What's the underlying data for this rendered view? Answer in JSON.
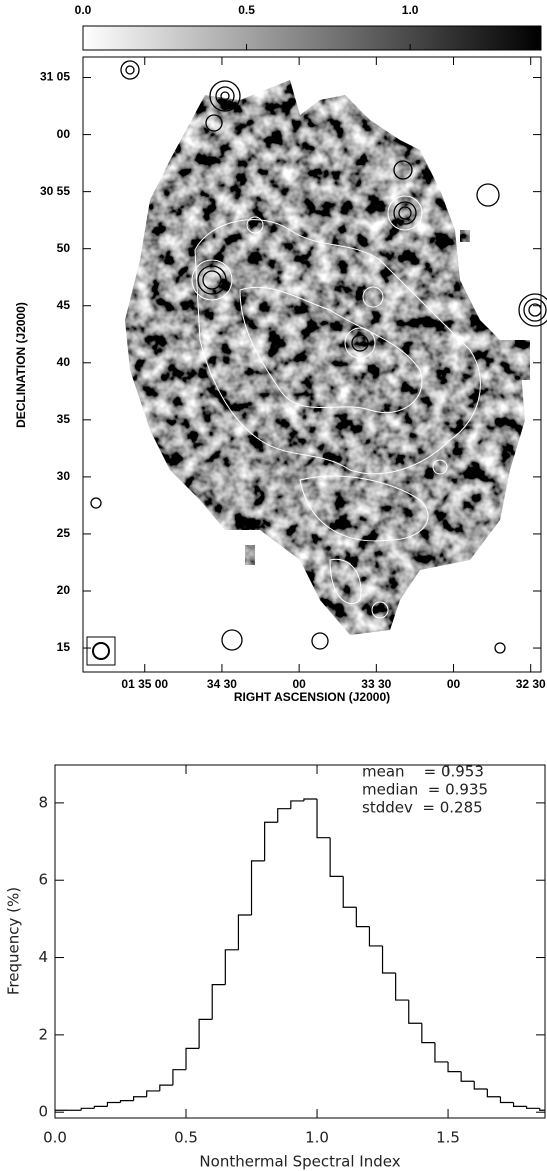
{
  "chart_data": [
    {
      "type": "map",
      "colorbar": {
        "clim": [
          0,
          1.4
        ],
        "ticks": [
          {
            "value": 0,
            "label": "0.0"
          },
          0.5,
          {
            "value": 1,
            "label": "1.0"
          }
        ]
      },
      "xlabel": "RIGHT ASCENSION (J2000)",
      "ylabel": "DECLINATION (J2000)",
      "xlim": [
        2124,
        1946
      ],
      "xticks": [
        {
          "value": 2100,
          "label": "01 35 00"
        },
        {
          "value": 2070,
          "label": "34 30"
        },
        {
          "value": 2040,
          "label": "00"
        },
        {
          "value": 2010,
          "label": "33 30"
        },
        {
          "value": 1980,
          "label": "00"
        },
        {
          "value": 1950,
          "label": "32 30"
        }
      ],
      "ylim": [
        12.9,
        66.8
      ],
      "yticks": [
        {
          "value": 65,
          "label": "31 05"
        },
        {
          "value": 60,
          "label": "00"
        },
        {
          "value": 55,
          "label": "30 55"
        },
        50,
        45,
        40,
        35,
        30,
        25,
        20,
        15
      ]
    },
    {
      "type": "histogram",
      "xlabel": "Nonthermal Spectral Index",
      "ylabel": "Frequency (%)",
      "annotations": [
        "mean    = 0.953",
        "median  = 0.935",
        "stddev  = 0.285"
      ],
      "color": "#000000",
      "bins": [
        0,
        0.05,
        0.1,
        0.15,
        0.2,
        0.25,
        0.3,
        0.35,
        0.4,
        0.45,
        0.5,
        0.55,
        0.6,
        0.65,
        0.7,
        0.75,
        0.8,
        0.85,
        0.9,
        0.95,
        1.0,
        1.05,
        1.1,
        1.15,
        1.2,
        1.25,
        1.3,
        1.35,
        1.4,
        1.45,
        1.5,
        1.55,
        1.6,
        1.65,
        1.7,
        1.75,
        1.8,
        1.85,
        1.9
      ],
      "values": [
        0.05,
        0.05,
        0.1,
        0.15,
        0.25,
        0.3,
        0.4,
        0.55,
        0.7,
        1.1,
        1.65,
        2.4,
        3.3,
        4.2,
        5.1,
        6.5,
        7.5,
        7.85,
        8.05,
        8.1,
        7.1,
        6.1,
        5.3,
        4.8,
        4.3,
        3.6,
        2.9,
        2.3,
        1.8,
        1.3,
        1.05,
        0.8,
        0.6,
        0.4,
        0.25,
        0.15,
        0.1,
        0.05
      ],
      "xlim": [
        0,
        1.87
      ],
      "xticks": [
        {
          "value": 0,
          "label": "0.0"
        },
        0.5,
        {
          "value": 1,
          "label": "1.0"
        },
        1.5
      ],
      "ylim": [
        -0.15,
        8.98
      ],
      "yticks": [
        0,
        2,
        4,
        6,
        8
      ]
    }
  ]
}
